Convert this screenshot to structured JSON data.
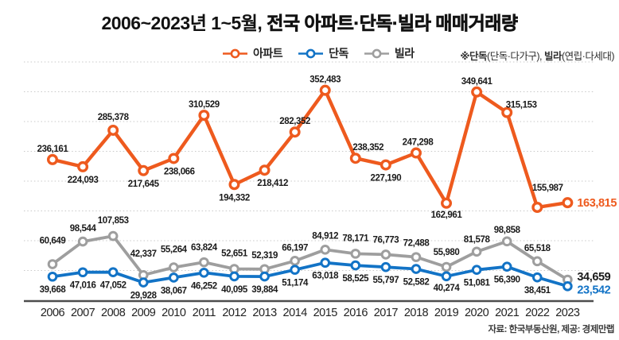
{
  "title": {
    "prefix": "2006~2023년 1~5월, ",
    "main": "전국 아파트·단독·빌라 매매거래량"
  },
  "legend": {
    "items": [
      {
        "key": "apartment",
        "label": "아파트",
        "color": "#ee5a1e"
      },
      {
        "key": "detached",
        "label": "단독",
        "color": "#1273c6"
      },
      {
        "key": "villa",
        "label": "빌라",
        "color": "#9e9e9e"
      }
    ]
  },
  "note": {
    "b1": "※단독",
    "r1": "(단독·다가구), ",
    "b2": "빌라",
    "r2": "(연립·다세대)"
  },
  "source": "자료: 한국부동산원, 제공: 경제만랩",
  "chart_data": {
    "type": "line",
    "title": "2006~2023년 1~5월, 전국 아파트·단독·빌라 매매거래량",
    "x": [
      2006,
      2007,
      2008,
      2009,
      2010,
      2011,
      2012,
      2013,
      2014,
      2015,
      2016,
      2017,
      2018,
      2019,
      2020,
      2021,
      2022,
      2023
    ],
    "ylim": [
      0,
      400000
    ],
    "grid_step": 50000,
    "grid": "horizontal-dotted",
    "legend_position": "top",
    "y_tick_labels_shown": false,
    "series": [
      {
        "name": "빌라",
        "key": "villa",
        "color": "#9e9e9e",
        "last_label_color": "#1a1a1a",
        "values": [
          60649,
          98544,
          107853,
          42337,
          55264,
          63824,
          52651,
          52319,
          66197,
          84912,
          78171,
          76773,
          72488,
          55980,
          81578,
          98858,
          65518,
          34659
        ],
        "label_pos": [
          "above",
          "above",
          "above",
          "above",
          "above",
          "above",
          "above",
          "above",
          "above",
          "above",
          "above",
          "above",
          "above",
          "above",
          "above",
          "above",
          "above",
          "right"
        ],
        "label_dx": [
          0,
          0,
          0,
          0,
          0,
          0,
          0,
          0,
          0,
          0,
          0,
          0,
          0,
          0,
          0,
          0,
          0,
          0
        ],
        "label_dy": [
          -16,
          -3,
          -6,
          -13,
          -9,
          -5,
          -6,
          -4,
          -3,
          -4,
          -6,
          -5,
          -4,
          -5,
          -2,
          -1,
          -3,
          -4
        ]
      },
      {
        "name": "단독",
        "key": "detached",
        "color": "#1273c6",
        "last_label_color": "#1273c6",
        "values": [
          39668,
          47016,
          47052,
          29928,
          38067,
          46252,
          40095,
          39884,
          51174,
          63018,
          58525,
          55797,
          52582,
          40274,
          51081,
          56390,
          38451,
          23542
        ],
        "label_pos": [
          "below",
          "below",
          "below",
          "below",
          "below",
          "below",
          "below",
          "below",
          "below",
          "below",
          "below",
          "below",
          "below",
          "below",
          "below",
          "below",
          "below",
          "right"
        ],
        "label_dx": [
          0,
          0,
          0,
          0,
          0,
          0,
          0,
          0,
          0,
          0,
          0,
          0,
          0,
          0,
          0,
          0,
          0,
          0
        ],
        "label_dy": [
          0,
          0,
          0,
          0,
          0,
          0,
          0,
          0,
          0,
          0,
          0,
          0,
          0,
          -2,
          0,
          0,
          0,
          4
        ]
      },
      {
        "name": "아파트",
        "key": "apartment",
        "color": "#ee5a1e",
        "last_label_color": "#ee5a1e",
        "values": [
          236161,
          224093,
          285378,
          217645,
          238066,
          310529,
          194332,
          218412,
          282352,
          352483,
          238352,
          227190,
          247298,
          162961,
          349641,
          315153,
          155987,
          163815
        ],
        "label_pos": [
          "above",
          "below",
          "above",
          "below",
          "below",
          "above",
          "below",
          "below",
          "above",
          "above",
          "above",
          "below",
          "above",
          "below",
          "above",
          "above",
          "above",
          "right"
        ],
        "label_dx": [
          0,
          0,
          0,
          0,
          7,
          0,
          0,
          10,
          0,
          0,
          16,
          0,
          2,
          0,
          0,
          18,
          13,
          0
        ],
        "label_dy": [
          0,
          0,
          -3,
          0,
          0,
          0,
          0,
          0,
          0,
          0,
          0,
          0,
          0,
          -2,
          0,
          4,
          -11,
          0
        ]
      }
    ]
  }
}
